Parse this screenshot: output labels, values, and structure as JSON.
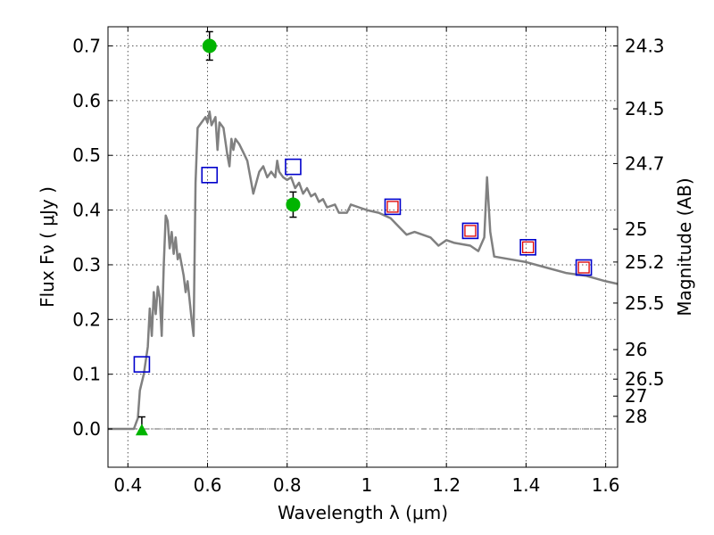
{
  "chart_data": {
    "type": "scatter",
    "xlabel": "Wavelength  λ (μm)",
    "ylabel_left": "Flux  Fν  ( μJy )",
    "ylabel_right": "Magnitude (AB)",
    "xlim": [
      0.35,
      1.63
    ],
    "ylim": [
      -0.07,
      0.735
    ],
    "x_ticks": [
      0.4,
      0.6,
      0.8,
      1.0,
      1.2,
      1.4,
      1.6
    ],
    "x_tick_labels": [
      "0.4",
      "0.6",
      "0.8",
      "1",
      "1.2",
      "1.4",
      "1.6"
    ],
    "y_ticks": [
      0.0,
      0.1,
      0.2,
      0.3,
      0.4,
      0.5,
      0.6,
      0.7
    ],
    "y_tick_labels": [
      "0.0",
      "0.1",
      "0.2",
      "0.3",
      "0.4",
      "0.5",
      "0.6",
      "0.7"
    ],
    "mag_ticks": [
      {
        "label": "24.3",
        "flux": 0.7
      },
      {
        "label": "24.5",
        "flux": 0.585
      },
      {
        "label": "24.7",
        "flux": 0.485
      },
      {
        "label": "25",
        "flux": 0.365
      },
      {
        "label": "25.2",
        "flux": 0.305
      },
      {
        "label": "25.5",
        "flux": 0.23
      },
      {
        "label": "26",
        "flux": 0.145
      },
      {
        "label": "26.5",
        "flux": 0.091
      },
      {
        "label": "27",
        "flux": 0.06
      },
      {
        "label": "28",
        "flux": 0.023
      }
    ],
    "grid": true,
    "colors": {
      "model": "#808080",
      "model_phot": "#0000cc",
      "obs_inner": "#dd0000",
      "detections": "#00b400",
      "errorbar": "#000000",
      "zero_line": "#666666"
    },
    "series": [
      {
        "kind": "model_spectrum",
        "points": [
          [
            0.35,
            0.0
          ],
          [
            0.415,
            0.0
          ],
          [
            0.425,
            0.02
          ],
          [
            0.43,
            0.07
          ],
          [
            0.44,
            0.1
          ],
          [
            0.45,
            0.15
          ],
          [
            0.455,
            0.22
          ],
          [
            0.46,
            0.17
          ],
          [
            0.465,
            0.25
          ],
          [
            0.47,
            0.21
          ],
          [
            0.475,
            0.26
          ],
          [
            0.48,
            0.24
          ],
          [
            0.485,
            0.17
          ],
          [
            0.49,
            0.3
          ],
          [
            0.495,
            0.39
          ],
          [
            0.5,
            0.38
          ],
          [
            0.505,
            0.33
          ],
          [
            0.51,
            0.36
          ],
          [
            0.515,
            0.32
          ],
          [
            0.52,
            0.35
          ],
          [
            0.525,
            0.31
          ],
          [
            0.53,
            0.32
          ],
          [
            0.54,
            0.28
          ],
          [
            0.545,
            0.25
          ],
          [
            0.55,
            0.27
          ],
          [
            0.56,
            0.2
          ],
          [
            0.565,
            0.17
          ],
          [
            0.57,
            0.45
          ],
          [
            0.575,
            0.55
          ],
          [
            0.585,
            0.56
          ],
          [
            0.595,
            0.57
          ],
          [
            0.6,
            0.56
          ],
          [
            0.605,
            0.58
          ],
          [
            0.61,
            0.555
          ],
          [
            0.62,
            0.57
          ],
          [
            0.625,
            0.51
          ],
          [
            0.63,
            0.56
          ],
          [
            0.64,
            0.55
          ],
          [
            0.65,
            0.5
          ],
          [
            0.655,
            0.48
          ],
          [
            0.66,
            0.53
          ],
          [
            0.665,
            0.51
          ],
          [
            0.67,
            0.53
          ],
          [
            0.68,
            0.52
          ],
          [
            0.69,
            0.505
          ],
          [
            0.7,
            0.49
          ],
          [
            0.71,
            0.45
          ],
          [
            0.715,
            0.43
          ],
          [
            0.73,
            0.47
          ],
          [
            0.74,
            0.48
          ],
          [
            0.75,
            0.46
          ],
          [
            0.76,
            0.47
          ],
          [
            0.77,
            0.46
          ],
          [
            0.775,
            0.49
          ],
          [
            0.78,
            0.47
          ],
          [
            0.79,
            0.46
          ],
          [
            0.8,
            0.455
          ],
          [
            0.81,
            0.46
          ],
          [
            0.82,
            0.44
          ],
          [
            0.83,
            0.45
          ],
          [
            0.84,
            0.43
          ],
          [
            0.85,
            0.44
          ],
          [
            0.86,
            0.425
          ],
          [
            0.87,
            0.43
          ],
          [
            0.88,
            0.415
          ],
          [
            0.89,
            0.42
          ],
          [
            0.9,
            0.405
          ],
          [
            0.92,
            0.41
          ],
          [
            0.93,
            0.395
          ],
          [
            0.95,
            0.395
          ],
          [
            0.96,
            0.41
          ],
          [
            0.98,
            0.405
          ],
          [
            1.0,
            0.4
          ],
          [
            1.03,
            0.395
          ],
          [
            1.06,
            0.385
          ],
          [
            1.08,
            0.37
          ],
          [
            1.1,
            0.355
          ],
          [
            1.12,
            0.36
          ],
          [
            1.16,
            0.35
          ],
          [
            1.18,
            0.335
          ],
          [
            1.2,
            0.345
          ],
          [
            1.22,
            0.34
          ],
          [
            1.26,
            0.335
          ],
          [
            1.28,
            0.325
          ],
          [
            1.295,
            0.35
          ],
          [
            1.302,
            0.46
          ],
          [
            1.31,
            0.36
          ],
          [
            1.32,
            0.315
          ],
          [
            1.36,
            0.31
          ],
          [
            1.4,
            0.305
          ],
          [
            1.45,
            0.295
          ],
          [
            1.5,
            0.285
          ],
          [
            1.55,
            0.28
          ],
          [
            1.6,
            0.27
          ],
          [
            1.63,
            0.265
          ]
        ]
      },
      {
        "kind": "model_photometry_squares",
        "points": [
          [
            0.435,
            0.118
          ],
          [
            0.605,
            0.464
          ],
          [
            0.815,
            0.479
          ],
          [
            1.065,
            0.406
          ],
          [
            1.26,
            0.362
          ],
          [
            1.405,
            0.332
          ],
          [
            1.545,
            0.295
          ]
        ]
      },
      {
        "kind": "observed_inner_squares",
        "points": [
          [
            1.065,
            0.406
          ],
          [
            1.26,
            0.362
          ],
          [
            1.405,
            0.332
          ],
          [
            1.545,
            0.295
          ]
        ]
      },
      {
        "kind": "detections",
        "points": [
          {
            "x": 0.605,
            "y": 0.7,
            "err": 0.026
          },
          {
            "x": 0.815,
            "y": 0.41,
            "err": 0.023
          }
        ]
      },
      {
        "kind": "upper_limit_triangle",
        "points": [
          {
            "x": 0.435,
            "y": -0.002,
            "err_top": 0.024
          }
        ]
      }
    ]
  }
}
